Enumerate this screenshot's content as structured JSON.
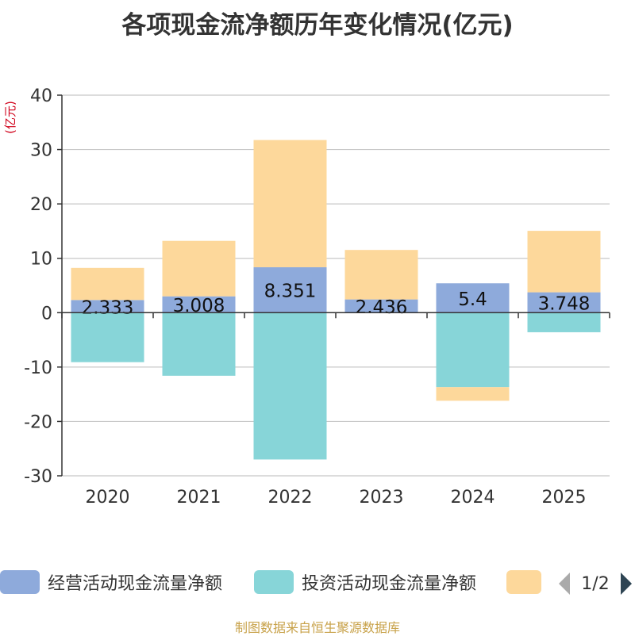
{
  "chart_data": {
    "type": "bar",
    "stacked": true,
    "title": "各项现金流净额历年变化情况(亿元)",
    "ylabel": "(亿元)",
    "xlabel": "",
    "ylim": [
      -30,
      40
    ],
    "yticks": [
      40,
      30,
      20,
      10,
      0,
      -10,
      -20,
      -30
    ],
    "categories": [
      "2020",
      "2021",
      "2022",
      "2023",
      "2024",
      "2025"
    ],
    "series": [
      {
        "name": "经营活动现金流量净额",
        "color": "#8eaadb",
        "values": [
          2.333,
          3.008,
          8.351,
          2.436,
          5.4,
          3.748
        ],
        "labels": [
          "2.333",
          "3.008",
          "8.351",
          "2.436",
          "5.4",
          "3.748"
        ]
      },
      {
        "name": "投资活动现金流量净额",
        "color": "#87d5d8",
        "values": [
          -9.1,
          -11.6,
          -27.0,
          0,
          -13.7,
          -3.6
        ]
      },
      {
        "name": "",
        "color": "#fdd89b",
        "values": [
          5.9,
          10.2,
          23.4,
          9.1,
          -2.5,
          11.3
        ]
      }
    ],
    "legend": {
      "position": "bottom",
      "page": "1/2"
    }
  },
  "source": "制图数据来自恒生聚源数据库"
}
